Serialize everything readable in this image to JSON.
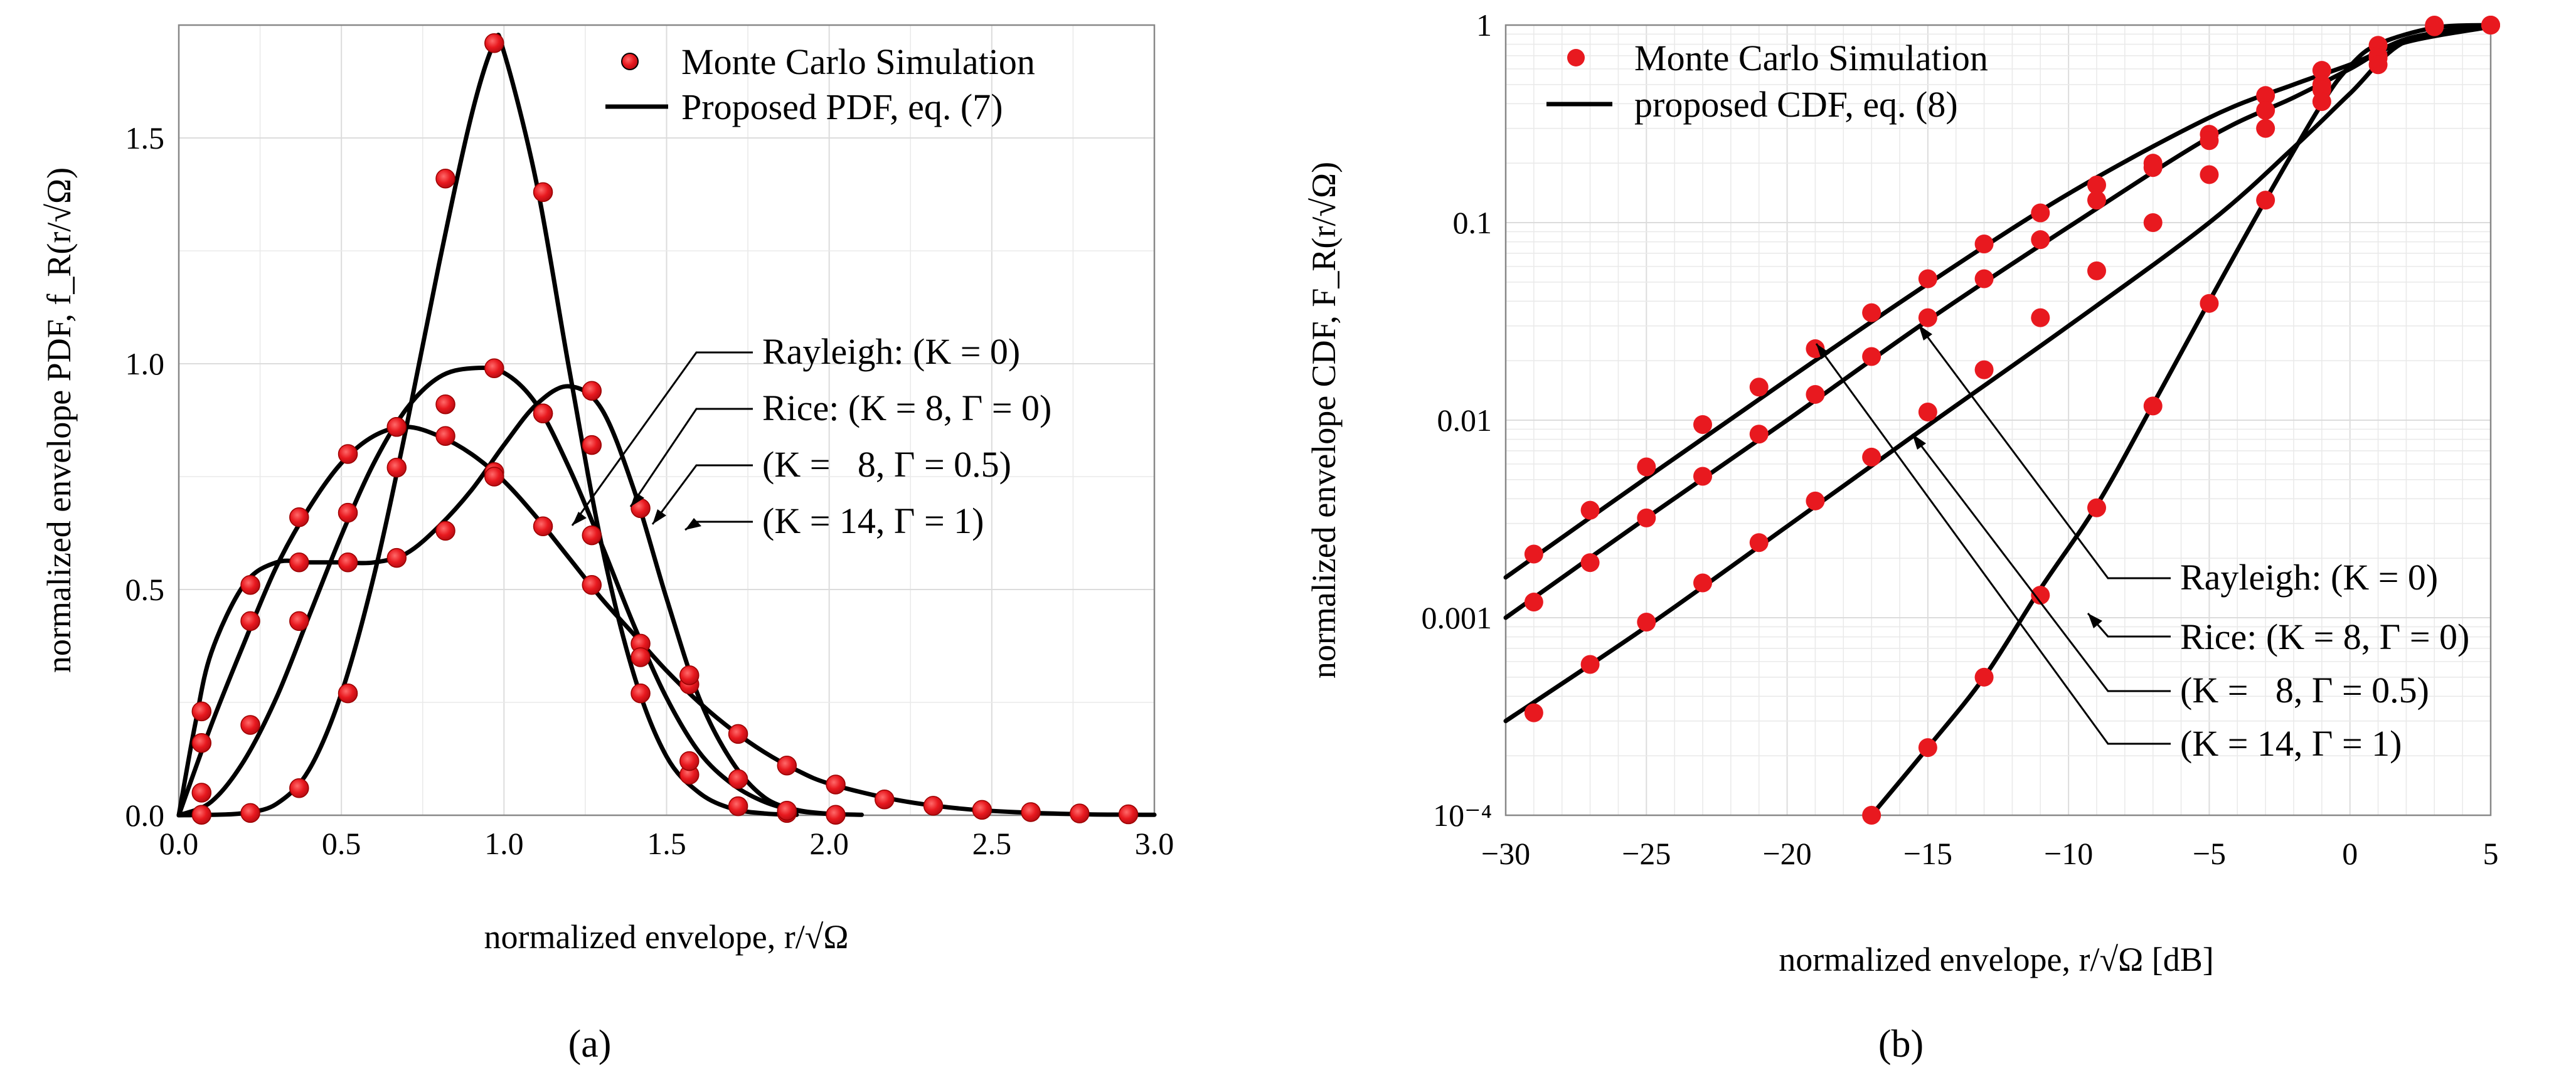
{
  "chart_data": [
    {
      "panel_label": "(a)",
      "type": "line",
      "xlabel": "normalized envelope, r/√Ω",
      "ylabel": "normalized envelope PDF, f_R(r/√Ω)",
      "xlim": [
        0,
        3
      ],
      "ylim": [
        0,
        1.75
      ],
      "x_ticks": [
        "0.0",
        "0.5",
        "1.0",
        "1.5",
        "2.0",
        "2.5",
        "3.0"
      ],
      "y_ticks": [
        "0.0",
        "0.5",
        "1.0",
        "1.5"
      ],
      "grid": true,
      "legend_position": "top-right",
      "legend": [
        "Monte Carlo Simulation",
        "Proposed PDF, eq. (7)"
      ],
      "series": [
        {
          "name": "Rayleigh: (K = 0)",
          "x": [
            0,
            0.1,
            0.2,
            0.3,
            0.4,
            0.5,
            0.6,
            0.7,
            0.8,
            0.9,
            1.0,
            1.1,
            1.2,
            1.3,
            1.4,
            1.5,
            1.6,
            1.7,
            1.8,
            1.9,
            2.0,
            2.2,
            2.4,
            2.6,
            2.8,
            3.0
          ],
          "y": [
            0,
            0.2,
            0.38,
            0.55,
            0.68,
            0.78,
            0.84,
            0.86,
            0.84,
            0.8,
            0.74,
            0.66,
            0.57,
            0.48,
            0.4,
            0.32,
            0.25,
            0.19,
            0.14,
            0.1,
            0.07,
            0.035,
            0.015,
            0.006,
            0.002,
            0.001
          ]
        },
        {
          "name": "Rice: (K = 8, Γ = 0)",
          "x": [
            0,
            0.1,
            0.2,
            0.3,
            0.4,
            0.5,
            0.6,
            0.7,
            0.8,
            0.9,
            1.0,
            1.1,
            1.2,
            1.3,
            1.4,
            1.5,
            1.6,
            1.7,
            1.8,
            1.9,
            2.0,
            2.1
          ],
          "y": [
            0,
            0.03,
            0.12,
            0.26,
            0.44,
            0.62,
            0.78,
            0.9,
            0.97,
            0.99,
            0.98,
            0.91,
            0.77,
            0.6,
            0.42,
            0.26,
            0.14,
            0.07,
            0.03,
            0.01,
            0.003,
            0.001
          ]
        },
        {
          "name": "(K = 8, Γ = 0.5)",
          "x": [
            0,
            0.05,
            0.1,
            0.2,
            0.3,
            0.4,
            0.5,
            0.6,
            0.7,
            0.8,
            0.9,
            1.0,
            1.1,
            1.2,
            1.3,
            1.4,
            1.5,
            1.6,
            1.7,
            1.8,
            1.9,
            2.0
          ],
          "y": [
            0,
            0.2,
            0.36,
            0.51,
            0.56,
            0.56,
            0.56,
            0.56,
            0.58,
            0.64,
            0.72,
            0.82,
            0.91,
            0.95,
            0.9,
            0.72,
            0.48,
            0.26,
            0.12,
            0.04,
            0.012,
            0.003
          ]
        },
        {
          "name": "(K = 14, Γ = 1)",
          "x": [
            0,
            0.1,
            0.2,
            0.3,
            0.4,
            0.5,
            0.6,
            0.7,
            0.8,
            0.9,
            0.97,
            1.0,
            1.1,
            1.2,
            1.3,
            1.4,
            1.5,
            1.6,
            1.7,
            1.8,
            1.9
          ],
          "y": [
            0,
            0.001,
            0.005,
            0.025,
            0.1,
            0.27,
            0.53,
            0.86,
            1.22,
            1.55,
            1.71,
            1.69,
            1.4,
            0.99,
            0.6,
            0.31,
            0.13,
            0.05,
            0.015,
            0.004,
            0.001
          ]
        }
      ],
      "mc_points": [
        {
          "series": "Rayleigh: (K = 0)",
          "x": [
            0.07,
            0.22,
            0.37,
            0.52,
            0.67,
            0.82,
            0.97,
            1.12,
            1.27,
            1.42,
            1.57,
            1.72,
            1.87,
            2.02,
            2.17,
            2.32,
            2.47,
            2.62,
            2.77,
            2.92
          ],
          "y": [
            0.23,
            0.51,
            0.66,
            0.8,
            0.86,
            0.84,
            0.76,
            0.64,
            0.51,
            0.38,
            0.29,
            0.18,
            0.11,
            0.068,
            0.035,
            0.021,
            0.012,
            0.007,
            0.004,
            0.002
          ]
        },
        {
          "series": "Rice: (K = 8, Γ = 0)",
          "x": [
            0.07,
            0.22,
            0.37,
            0.52,
            0.67,
            0.82,
            0.97,
            1.12,
            1.27,
            1.42,
            1.57,
            1.72,
            1.87,
            2.02
          ],
          "y": [
            0.05,
            0.2,
            0.43,
            0.67,
            0.86,
            0.91,
            0.99,
            0.89,
            0.62,
            0.27,
            0.09,
            0.02,
            0.005,
            0.001
          ]
        },
        {
          "series": "(K = 8, Γ = 0.5)",
          "x": [
            0.07,
            0.22,
            0.37,
            0.52,
            0.67,
            0.82,
            0.97,
            1.12,
            1.27,
            1.42,
            1.57,
            1.72,
            1.87
          ],
          "y": [
            0.16,
            0.43,
            0.56,
            0.56,
            0.57,
            0.63,
            0.75,
            0.89,
            0.94,
            0.68,
            0.31,
            0.08,
            0.01
          ]
        },
        {
          "series": "(K = 14, Γ = 1)",
          "x": [
            0.07,
            0.22,
            0.37,
            0.52,
            0.67,
            0.82,
            0.97,
            1.12,
            1.27,
            1.42,
            1.57
          ],
          "y": [
            0.001,
            0.005,
            0.06,
            0.27,
            0.77,
            1.41,
            1.71,
            1.38,
            0.82,
            0.35,
            0.12
          ]
        }
      ],
      "annotations": [
        "Rayleigh: (K = 0)",
        "Rice: (K = 8, Γ = 0)",
        "(K =   8, Γ = 0.5)",
        "(K = 14, Γ = 1)"
      ]
    },
    {
      "panel_label": "(b)",
      "type": "line",
      "yscale": "log",
      "xlabel": "normalized envelope, r/√Ω [dB]",
      "ylabel": "normalized envelope CDF, F_R(r/√Ω)",
      "xlim": [
        -30,
        5
      ],
      "ylim": [
        0.0001,
        1
      ],
      "x_ticks": [
        "−30",
        "−25",
        "−20",
        "−15",
        "−10",
        "−5",
        "0",
        "5"
      ],
      "y_ticks": [
        "10⁻⁴",
        "0.001",
        "0.01",
        "0.1",
        "1"
      ],
      "grid": true,
      "legend_position": "top-left",
      "legend": [
        "Monte Carlo Simulation",
        "proposed CDF, eq. (8)"
      ],
      "series": [
        {
          "name": "Rayleigh: (K = 0)",
          "x": [
            -30,
            -25,
            -20,
            -15,
            -10,
            -5,
            -2,
            0,
            2,
            5
          ],
          "y": [
            0.0016,
            0.0051,
            0.016,
            0.049,
            0.14,
            0.34,
            0.5,
            0.63,
            0.82,
            0.98
          ]
        },
        {
          "name": "Rice: (K = 8, Γ = 0)",
          "x": [
            -30,
            -25,
            -20,
            -15,
            -10,
            -5,
            -2,
            0,
            2,
            5
          ],
          "y": [
            0.001,
            0.0032,
            0.01,
            0.032,
            0.095,
            0.27,
            0.43,
            0.6,
            0.85,
            0.995
          ]
        },
        {
          "name": "(K = 8, Γ = 0.5)",
          "x": [
            -30,
            -25,
            -20,
            -15,
            -10,
            -5,
            -2,
            0,
            2,
            5
          ],
          "y": [
            0.0003,
            0.0009,
            0.0029,
            0.0094,
            0.03,
            0.1,
            0.24,
            0.45,
            0.83,
            0.998
          ]
        },
        {
          "name": "(K = 14, Γ = 1)",
          "x": [
            -17,
            -15,
            -13,
            -11,
            -9,
            -7,
            -5,
            -3,
            -1,
            0,
            1,
            3,
            5
          ],
          "y": [
            0.0001,
            0.00022,
            0.0005,
            0.0014,
            0.0037,
            0.012,
            0.04,
            0.13,
            0.4,
            0.62,
            0.8,
            0.97,
            1.0
          ]
        }
      ],
      "mc_points": [
        {
          "series": "Rayleigh: (K = 0)",
          "x": [
            -29,
            -27,
            -25,
            -23,
            -21,
            -19,
            -17,
            -15,
            -13,
            -11,
            -9,
            -7,
            -5,
            -3,
            -1,
            1,
            3,
            5
          ],
          "y": [
            0.0021,
            0.0035,
            0.0058,
            0.0095,
            0.0147,
            0.023,
            0.035,
            0.052,
            0.078,
            0.112,
            0.155,
            0.2,
            0.28,
            0.44,
            0.59,
            0.79,
            0.99,
            1.0
          ]
        },
        {
          "series": "Rice: (K = 8, Γ = 0)",
          "x": [
            -29,
            -27,
            -25,
            -23,
            -21,
            -19,
            -17,
            -15,
            -13,
            -11,
            -9,
            -7,
            -5,
            -3,
            -1,
            1,
            3,
            5
          ],
          "y": [
            0.0012,
            0.0019,
            0.0032,
            0.0052,
            0.0085,
            0.0135,
            0.021,
            0.033,
            0.052,
            0.082,
            0.13,
            0.19,
            0.26,
            0.37,
            0.5,
            0.7,
            0.98,
            1.0
          ]
        },
        {
          "series": "(K = 8, Γ = 0.5)",
          "x": [
            -29,
            -27,
            -25,
            -23,
            -21,
            -19,
            -17,
            -15,
            -13,
            -11,
            -9,
            -7,
            -5,
            -3,
            -1,
            1,
            3,
            5
          ],
          "y": [
            0.00033,
            0.00058,
            0.00095,
            0.0015,
            0.0024,
            0.0039,
            0.0065,
            0.011,
            0.018,
            0.033,
            0.057,
            0.1,
            0.175,
            0.3,
            0.47,
            0.68,
            0.99,
            1.0
          ]
        },
        {
          "series": "(K = 14, Γ = 1)",
          "x": [
            -17,
            -15,
            -13,
            -11,
            -9,
            -7,
            -5,
            -3,
            -1,
            1,
            3
          ],
          "y": [
            0.0001,
            0.00022,
            0.0005,
            0.0013,
            0.0036,
            0.0118,
            0.039,
            0.13,
            0.41,
            0.63,
            1.0
          ]
        }
      ],
      "annotations": [
        "Rayleigh: (K = 0)",
        "Rice: (K = 8, Γ = 0)",
        "(K =   8, Γ = 0.5)",
        "(K = 14, Γ = 1)"
      ]
    }
  ],
  "colors": {
    "marker": "#e8191f",
    "curve": "#000000",
    "grid": "#dcdcdc"
  },
  "chart_a_markers_outlined": true
}
